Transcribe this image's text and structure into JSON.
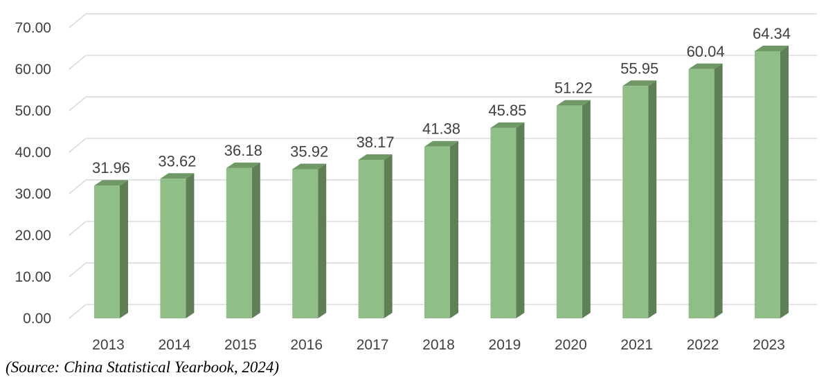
{
  "chart_data": {
    "type": "bar",
    "categories": [
      "2013",
      "2014",
      "2015",
      "2016",
      "2017",
      "2018",
      "2019",
      "2020",
      "2021",
      "2022",
      "2023"
    ],
    "values": [
      31.96,
      33.62,
      36.18,
      35.92,
      38.17,
      41.38,
      45.85,
      51.22,
      55.95,
      60.04,
      64.34
    ],
    "value_labels": [
      "31.96",
      "33.62",
      "36.18",
      "35.92",
      "38.17",
      "41.38",
      "45.85",
      "51.22",
      "55.95",
      "60.04",
      "64.34"
    ],
    "y_ticks": [
      0,
      10,
      20,
      30,
      40,
      50,
      60,
      70
    ],
    "y_tick_labels": [
      "0.00",
      "10.00",
      "20.00",
      "30.00",
      "40.00",
      "50.00",
      "60.00",
      "70.00"
    ],
    "ylim": [
      0,
      70
    ],
    "title": "",
    "xlabel": "",
    "ylabel": "",
    "grid": true,
    "style": "3d-column",
    "colors": {
      "bar_front": "#8fbf86",
      "bar_side": "#5f7f57",
      "bar_top": "#6f9866",
      "grid": "#d9d9d9"
    }
  },
  "source_note": "(Source: China Statistical Yearbook, 2024)"
}
